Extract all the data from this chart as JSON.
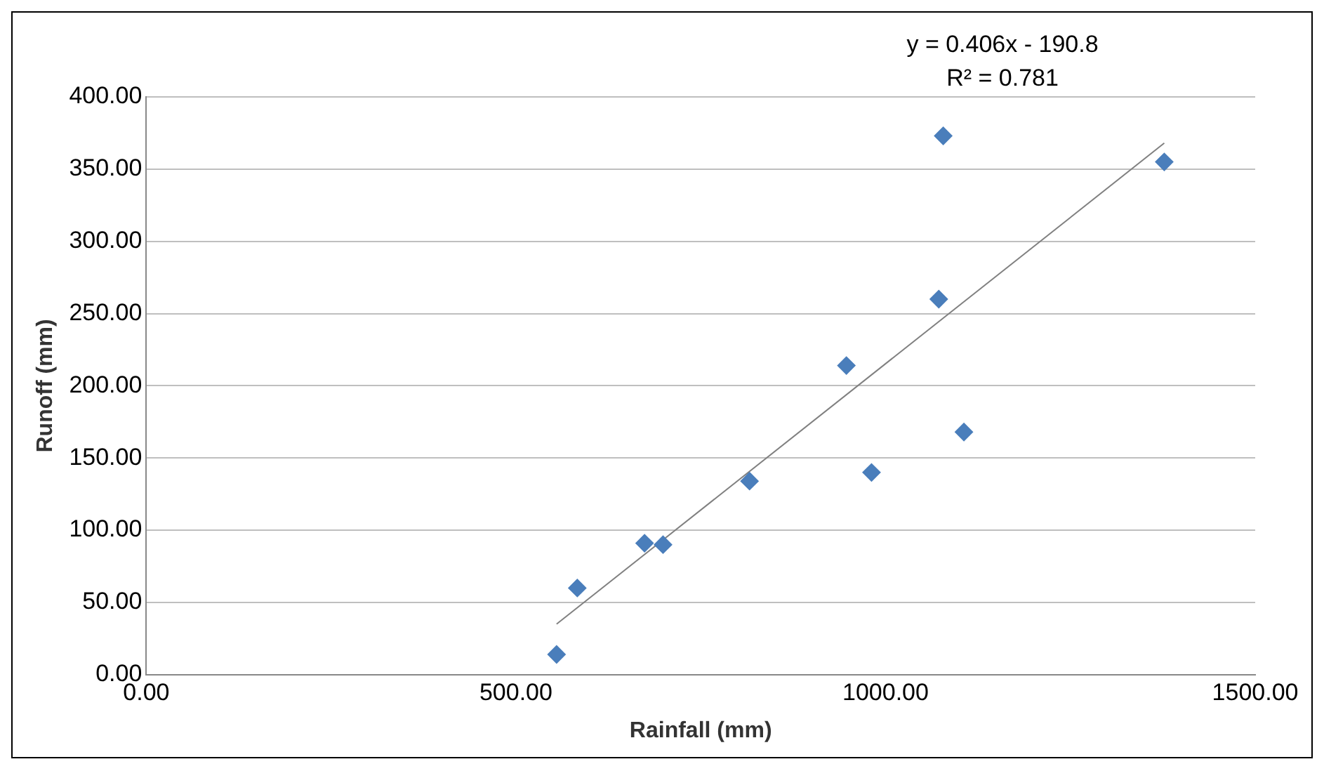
{
  "chart_data": {
    "type": "scatter",
    "xlabel": "Rainfall (mm)",
    "ylabel": "Runoff (mm)",
    "annotations": [
      "y = 0.406x - 190.8",
      "R² = 0.781"
    ],
    "series": [
      {
        "type": "scatter",
        "color": "#4a7ebb",
        "marker": "diamond",
        "x": [
          555,
          583,
          674,
          699,
          816,
          947,
          981,
          1072,
          1078,
          1106,
          1377
        ],
        "values": [
          14,
          60,
          91,
          90,
          134,
          214,
          140,
          260,
          373,
          168,
          355
        ]
      },
      {
        "type": "line",
        "color": "#808080",
        "marker": "none",
        "x": [
          555,
          1377
        ],
        "values": [
          35,
          368
        ]
      }
    ],
    "xlim": [
      0,
      1500
    ],
    "xticks": [
      {
        "value": 0,
        "label": "0.00"
      },
      {
        "value": 500,
        "label": "500.00"
      },
      {
        "value": 1000,
        "label": "1000.00"
      },
      {
        "value": 1500,
        "label": "1500.00"
      }
    ],
    "ylim": [
      0,
      400
    ],
    "yticks": [
      {
        "value": 0,
        "label": "0.00"
      },
      {
        "value": 50,
        "label": "50.00"
      },
      {
        "value": 100,
        "label": "100.00"
      },
      {
        "value": 150,
        "label": "150.00"
      },
      {
        "value": 200,
        "label": "200.00"
      },
      {
        "value": 250,
        "label": "250.00"
      },
      {
        "value": 300,
        "label": "300.00"
      },
      {
        "value": 350,
        "label": "350.00"
      },
      {
        "value": 400,
        "label": "400.00"
      }
    ],
    "grid": "y",
    "legend": false
  }
}
